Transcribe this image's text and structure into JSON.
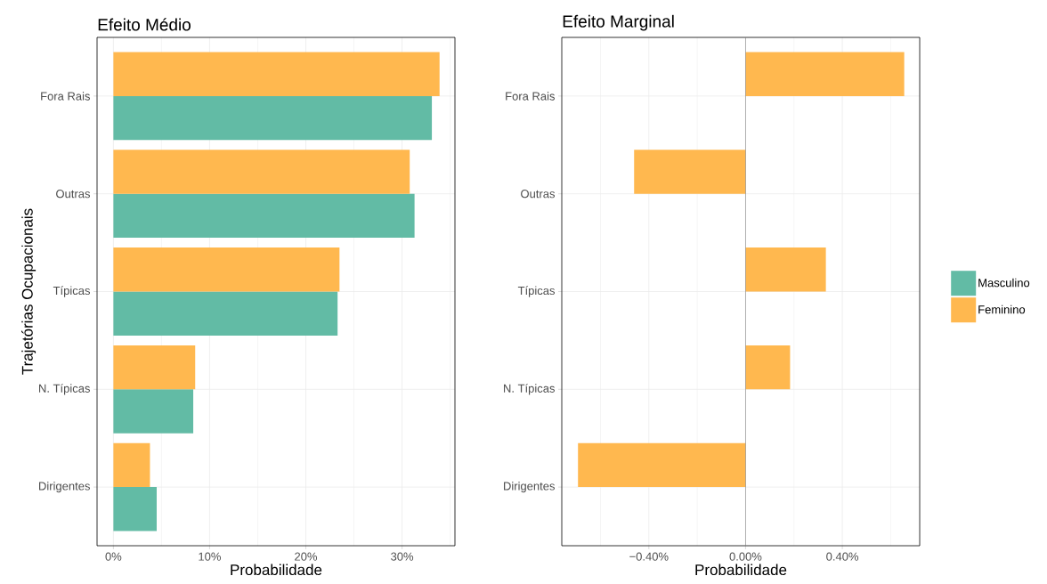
{
  "chart_data": [
    {
      "type": "bar",
      "orientation": "horizontal",
      "title": "Efeito Médio",
      "xlabel": "Probabilidade",
      "ylabel": "Trajetórias Ocupacionais",
      "categories": [
        "Fora Rais",
        "Outras",
        "Típicas",
        "N. Típicas",
        "Dirigentes"
      ],
      "series": [
        {
          "name": "Masculino",
          "color": "#62BBA5",
          "values": [
            33.1,
            31.3,
            23.3,
            8.3,
            4.5
          ]
        },
        {
          "name": "Feminino",
          "color": "#FFB84F",
          "values": [
            33.9,
            30.8,
            23.5,
            8.5,
            3.8
          ]
        }
      ],
      "xlim": [
        -1.7,
        35.5
      ],
      "xticks": [
        {
          "value": 0,
          "label": "0%"
        },
        {
          "value": 5,
          "label": null
        },
        {
          "value": 10,
          "label": "10%"
        },
        {
          "value": 15,
          "label": null
        },
        {
          "value": 20,
          "label": "20%"
        },
        {
          "value": 25,
          "label": null
        },
        {
          "value": 30,
          "label": "30%"
        },
        {
          "value": 35,
          "label": null
        }
      ],
      "grid": true,
      "legend": "right"
    },
    {
      "type": "bar",
      "orientation": "horizontal",
      "title": "Efeito Marginal",
      "xlabel": "Probabilidade",
      "categories": [
        "Fora Rais",
        "Outras",
        "Típicas",
        "N. Típicas",
        "Dirigentes"
      ],
      "series": [
        {
          "color": "#62BBA5",
          "values": [
            null,
            null,
            null,
            null,
            null
          ]
        },
        {
          "color": "#FFB84F",
          "values": [
            0.656,
            -0.461,
            0.332,
            0.184,
            -0.693
          ]
        }
      ],
      "xlim": [
        -0.76,
        0.72
      ],
      "xticks": [
        {
          "value": -0.6,
          "label": null
        },
        {
          "value": -0.4,
          "label": "−0.40%"
        },
        {
          "value": -0.2,
          "label": null
        },
        {
          "value": 0,
          "label": "0.00%"
        },
        {
          "value": 0.2,
          "label": null
        },
        {
          "value": 0.4,
          "label": "0.40%"
        },
        {
          "value": 0.6,
          "label": null
        }
      ],
      "grid": true,
      "ref_lines": [
        {
          "axis": "x",
          "value": 0,
          "color": "#7F7F7F"
        }
      ]
    }
  ]
}
